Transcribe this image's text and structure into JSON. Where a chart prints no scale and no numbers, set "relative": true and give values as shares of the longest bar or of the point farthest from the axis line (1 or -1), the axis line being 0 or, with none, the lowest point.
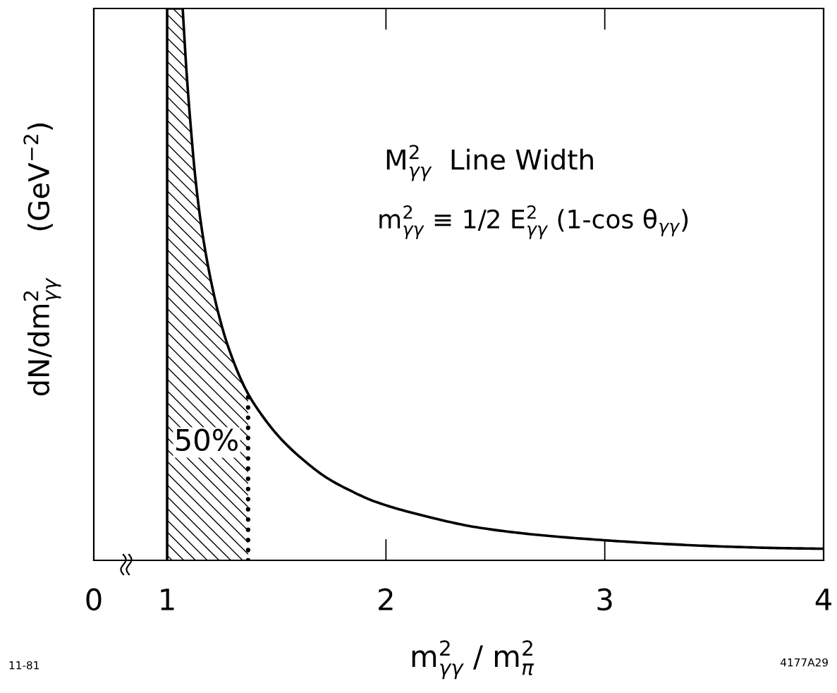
{
  "chart_data": [
    {
      "type": "other",
      "annotations": [
        "0"
      ]
    },
    {
      "type": "line",
      "relative": true,
      "xlabel": "m$^{2}$$_{γγ}$ / m$^{2}$$_{π}$",
      "ylabel": "dN/dm$^{2}$$_{γγ}$     (GeV$^{−2}$)",
      "xlim": [
        0.813,
        4
      ],
      "xticks": [
        1,
        2,
        3,
        4
      ],
      "series": [
        {
          "type": "area",
          "color": "#000000",
          "x": [
            1.0,
            1.071,
            1.088,
            1.107,
            1.128,
            1.154,
            1.19,
            1.232,
            1.279,
            1.364,
            1.37
          ],
          "values": [
            1.0,
            1.0,
            0.889,
            0.79,
            0.697,
            0.612,
            0.527,
            0.451,
            0.387,
            0.306,
            0.302
          ]
        },
        {
          "color": "#000000",
          "x": [
            1.0,
            1.0,
            1.071,
            1.088,
            1.107,
            1.128,
            1.154,
            1.19,
            1.232,
            1.279,
            1.364,
            1.433,
            1.518,
            1.625,
            1.732,
            1.839,
            1.946,
            2.201,
            2.413,
            2.696,
            2.978,
            3.261,
            3.544,
            3.826,
            4.0
          ],
          "values": [
            0,
            1.0,
            1.0,
            0.889,
            0.79,
            0.697,
            0.612,
            0.527,
            0.451,
            0.387,
            0.306,
            0.263,
            0.221,
            0.181,
            0.149,
            0.126,
            0.107,
            0.078,
            0.06,
            0.046,
            0.037,
            0.03,
            0.025,
            0.022,
            0.021
          ]
        },
        {
          "color": "#000000",
          "line_style": "dotted",
          "x": [
            1.37,
            1.37
          ],
          "values": [
            0,
            0.302
          ]
        }
      ],
      "annotations": [
        "M$^{2}$$_{γγ}$  Line Width",
        "m$^{2}$$_{γγ}$ ≡ 1/2 E$^{2}$$_{γγ}$ (1-cos θ$_{γγ}$)",
        "50%",
        "11-81",
        "4177A29"
      ]
    }
  ]
}
